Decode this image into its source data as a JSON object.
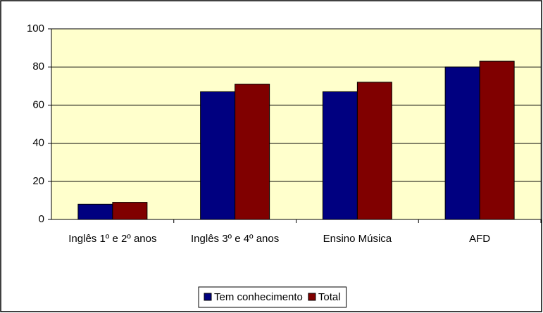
{
  "chart_data": {
    "type": "bar",
    "categories": [
      "Inglês 1º e 2º anos",
      "Inglês 3º e 4º anos",
      "Ensino Música",
      "AFD"
    ],
    "series": [
      {
        "name": "Tem conhecimento",
        "color": "#000080",
        "values": [
          8,
          67,
          67,
          80
        ]
      },
      {
        "name": "Total",
        "color": "#800000",
        "values": [
          9,
          71,
          72,
          83
        ]
      }
    ],
    "ylim": [
      0,
      100
    ],
    "yticks": [
      0,
      20,
      40,
      60,
      80,
      100
    ],
    "grid": true,
    "legend": "bottom"
  }
}
